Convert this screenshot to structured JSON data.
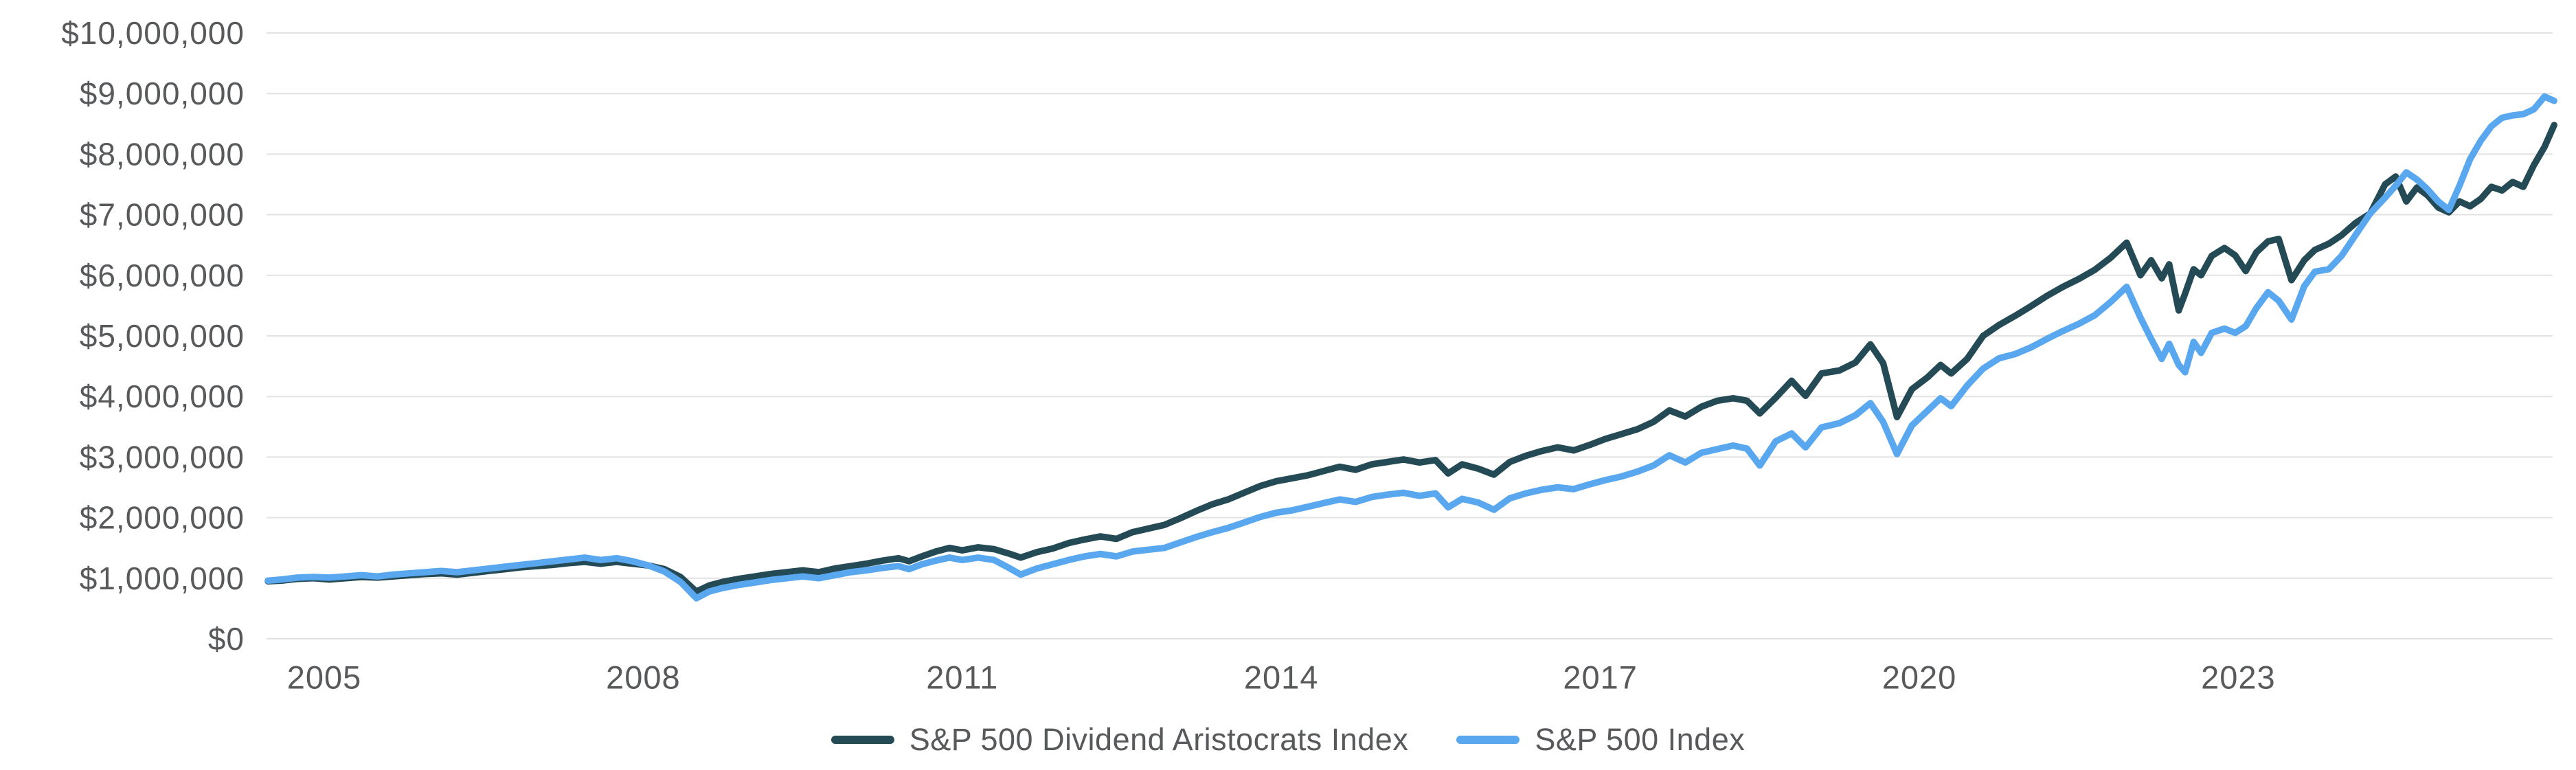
{
  "chart_data": {
    "type": "line",
    "title": "",
    "xlabel": "",
    "ylabel": "",
    "values_unit": "USD_millions",
    "grid": "horizontal",
    "legend_position": "bottom-center",
    "colors": {
      "aristocrats_line": "#244a56",
      "sp500_line": "#58a7ef",
      "gridline": "#e2e2e2",
      "tick_text": "#58595b",
      "background": "#ffffff"
    },
    "x_axis": {
      "ticks": [
        2005,
        2008,
        2011,
        2014,
        2017,
        2020,
        2023
      ],
      "tick_labels": [
        "2005",
        "2008",
        "2011",
        "2014",
        "2017",
        "2020",
        "2023"
      ],
      "range": [
        2004.42,
        2026.02
      ]
    },
    "y_axis": {
      "range": [
        0,
        10000000
      ],
      "ticks": [
        {
          "value": 0,
          "label": "$0"
        },
        {
          "value": 1,
          "label": "$1,000,000"
        },
        {
          "value": 2,
          "label": "$2,000,000"
        },
        {
          "value": 3,
          "label": "$3,000,000"
        },
        {
          "value": 4,
          "label": "$4,000,000"
        },
        {
          "value": 5,
          "label": "$5,000,000"
        },
        {
          "value": 6,
          "label": "$6,000,000"
        },
        {
          "value": 7,
          "label": "$7,000,000"
        },
        {
          "value": 8,
          "label": "$8,000,000"
        },
        {
          "value": 9,
          "label": "$9,000,000"
        },
        {
          "value": 10,
          "label": "$10,000,000"
        }
      ]
    },
    "x": [
      2004.47,
      2004.6,
      2004.75,
      2004.9,
      2005.05,
      2005.2,
      2005.35,
      2005.5,
      2005.65,
      2005.8,
      2005.95,
      2006.1,
      2006.25,
      2006.4,
      2006.55,
      2006.7,
      2006.85,
      2007.0,
      2007.15,
      2007.3,
      2007.45,
      2007.6,
      2007.75,
      2007.9,
      2008.05,
      2008.2,
      2008.35,
      2008.5,
      2008.62,
      2008.75,
      2008.9,
      2009.05,
      2009.2,
      2009.35,
      2009.5,
      2009.65,
      2009.8,
      2009.95,
      2010.1,
      2010.25,
      2010.4,
      2010.5,
      2010.62,
      2010.75,
      2010.88,
      2011.0,
      2011.15,
      2011.3,
      2011.45,
      2011.55,
      2011.7,
      2011.85,
      2012.0,
      2012.15,
      2012.3,
      2012.45,
      2012.6,
      2012.75,
      2012.9,
      2013.05,
      2013.2,
      2013.35,
      2013.5,
      2013.65,
      2013.8,
      2013.95,
      2014.1,
      2014.25,
      2014.4,
      2014.55,
      2014.7,
      2014.85,
      2015.0,
      2015.15,
      2015.3,
      2015.45,
      2015.57,
      2015.7,
      2015.85,
      2016.0,
      2016.15,
      2016.3,
      2016.45,
      2016.6,
      2016.75,
      2016.9,
      2017.05,
      2017.2,
      2017.35,
      2017.5,
      2017.65,
      2017.8,
      2017.95,
      2018.1,
      2018.25,
      2018.38,
      2018.5,
      2018.65,
      2018.8,
      2018.93,
      2019.08,
      2019.25,
      2019.4,
      2019.54,
      2019.66,
      2019.79,
      2019.93,
      2020.08,
      2020.2,
      2020.3,
      2020.45,
      2020.6,
      2020.75,
      2020.9,
      2021.05,
      2021.2,
      2021.35,
      2021.5,
      2021.65,
      2021.8,
      2021.95,
      2022.08,
      2022.18,
      2022.28,
      2022.35,
      2022.44,
      2022.5,
      2022.58,
      2022.65,
      2022.75,
      2022.87,
      2022.97,
      2023.07,
      2023.17,
      2023.28,
      2023.38,
      2023.5,
      2023.62,
      2023.72,
      2023.85,
      2023.97,
      2024.1,
      2024.24,
      2024.38,
      2024.48,
      2024.58,
      2024.68,
      2024.78,
      2024.88,
      2024.98,
      2025.08,
      2025.18,
      2025.28,
      2025.38,
      2025.48,
      2025.58,
      2025.68,
      2025.78,
      2025.88,
      2025.97
    ],
    "series": [
      {
        "name": "S&P 500 Dividend Aristocrats Index",
        "color_key": "aristocrats_line",
        "values": [
          0.95,
          0.96,
          0.99,
          1.0,
          0.98,
          1.0,
          1.02,
          1.01,
          1.03,
          1.05,
          1.07,
          1.08,
          1.06,
          1.09,
          1.12,
          1.15,
          1.18,
          1.2,
          1.22,
          1.25,
          1.27,
          1.24,
          1.27,
          1.24,
          1.21,
          1.15,
          1.02,
          0.78,
          0.88,
          0.94,
          0.99,
          1.03,
          1.07,
          1.1,
          1.13,
          1.1,
          1.16,
          1.2,
          1.24,
          1.29,
          1.33,
          1.28,
          1.36,
          1.44,
          1.5,
          1.46,
          1.51,
          1.48,
          1.4,
          1.34,
          1.43,
          1.49,
          1.58,
          1.64,
          1.69,
          1.65,
          1.76,
          1.82,
          1.88,
          1.99,
          2.11,
          2.22,
          2.3,
          2.41,
          2.52,
          2.6,
          2.65,
          2.7,
          2.77,
          2.84,
          2.79,
          2.88,
          2.92,
          2.96,
          2.91,
          2.95,
          2.73,
          2.88,
          2.81,
          2.71,
          2.92,
          3.02,
          3.1,
          3.16,
          3.11,
          3.2,
          3.3,
          3.38,
          3.46,
          3.58,
          3.77,
          3.67,
          3.83,
          3.93,
          3.97,
          3.93,
          3.72,
          3.98,
          4.26,
          4.01,
          4.38,
          4.43,
          4.56,
          4.86,
          4.55,
          3.66,
          4.12,
          4.32,
          4.52,
          4.38,
          4.62,
          5.0,
          5.18,
          5.33,
          5.49,
          5.66,
          5.81,
          5.94,
          6.09,
          6.29,
          6.54,
          6.0,
          6.25,
          5.95,
          6.18,
          5.42,
          5.7,
          6.1,
          6.0,
          6.32,
          6.45,
          6.33,
          6.07,
          6.38,
          6.56,
          6.6,
          5.92,
          6.25,
          6.42,
          6.52,
          6.66,
          6.86,
          7.02,
          7.5,
          7.63,
          7.22,
          7.45,
          7.32,
          7.12,
          7.04,
          7.22,
          7.14,
          7.26,
          7.46,
          7.4,
          7.54,
          7.46,
          7.82,
          8.12,
          8.48
        ]
      },
      {
        "name": "S&P 500 Index",
        "color_key": "sp500_line",
        "values": [
          0.96,
          0.98,
          1.01,
          1.02,
          1.01,
          1.03,
          1.05,
          1.03,
          1.06,
          1.08,
          1.1,
          1.12,
          1.1,
          1.13,
          1.16,
          1.19,
          1.22,
          1.25,
          1.28,
          1.31,
          1.34,
          1.3,
          1.33,
          1.28,
          1.21,
          1.11,
          0.94,
          0.67,
          0.78,
          0.84,
          0.89,
          0.93,
          0.97,
          1.0,
          1.03,
          1.0,
          1.05,
          1.1,
          1.13,
          1.17,
          1.2,
          1.15,
          1.23,
          1.29,
          1.34,
          1.3,
          1.34,
          1.3,
          1.16,
          1.06,
          1.16,
          1.23,
          1.3,
          1.36,
          1.4,
          1.36,
          1.44,
          1.47,
          1.5,
          1.59,
          1.68,
          1.76,
          1.83,
          1.92,
          2.01,
          2.08,
          2.12,
          2.18,
          2.24,
          2.3,
          2.26,
          2.34,
          2.38,
          2.41,
          2.36,
          2.4,
          2.17,
          2.31,
          2.25,
          2.13,
          2.32,
          2.4,
          2.46,
          2.5,
          2.47,
          2.55,
          2.62,
          2.68,
          2.76,
          2.86,
          3.03,
          2.91,
          3.07,
          3.13,
          3.19,
          3.14,
          2.86,
          3.26,
          3.39,
          3.16,
          3.49,
          3.56,
          3.69,
          3.89,
          3.58,
          3.05,
          3.52,
          3.77,
          3.97,
          3.84,
          4.18,
          4.46,
          4.63,
          4.7,
          4.81,
          4.95,
          5.08,
          5.2,
          5.34,
          5.56,
          5.81,
          5.3,
          4.95,
          4.62,
          4.87,
          4.52,
          4.4,
          4.9,
          4.72,
          5.05,
          5.12,
          5.05,
          5.16,
          5.46,
          5.72,
          5.58,
          5.27,
          5.82,
          6.06,
          6.1,
          6.32,
          6.66,
          7.02,
          7.28,
          7.48,
          7.7,
          7.58,
          7.42,
          7.22,
          7.08,
          7.48,
          7.92,
          8.22,
          8.46,
          8.6,
          8.64,
          8.66,
          8.74,
          8.95,
          8.88
        ]
      }
    ]
  },
  "legend": {
    "items": [
      {
        "label": "S&P 500 Dividend Aristocrats Index"
      },
      {
        "label": "S&P 500 Index"
      }
    ]
  }
}
